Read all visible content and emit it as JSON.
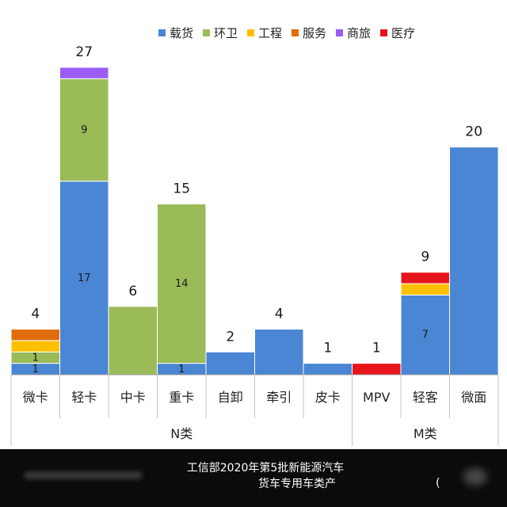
{
  "chart_data": {
    "type": "bar",
    "stacked": true,
    "categories": [
      "微卡",
      "轻卡",
      "中卡",
      "重卡",
      "自卸",
      "牵引",
      "皮卡",
      "MPV",
      "轻客",
      "微面"
    ],
    "groups": [
      {
        "label": "N类",
        "categories": [
          "微卡",
          "轻卡",
          "中卡",
          "重卡",
          "自卸",
          "牵引",
          "皮卡"
        ]
      },
      {
        "label": "M类",
        "categories": [
          "MPV",
          "轻客",
          "微面"
        ]
      }
    ],
    "series": [
      {
        "name": "载货",
        "color": "#4a86d4",
        "values": [
          1,
          17,
          0,
          1,
          2,
          4,
          1,
          0,
          7,
          20
        ]
      },
      {
        "name": "环卫",
        "color": "#9bbb59",
        "values": [
          1,
          9,
          6,
          14,
          0,
          0,
          0,
          0,
          0,
          0
        ]
      },
      {
        "name": "工程",
        "color": "#ffc000",
        "values": [
          1,
          0,
          0,
          0,
          0,
          0,
          0,
          0,
          1,
          0
        ]
      },
      {
        "name": "服务",
        "color": "#e36c0a",
        "values": [
          1,
          0,
          0,
          0,
          0,
          0,
          0,
          0,
          0,
          0
        ]
      },
      {
        "name": "商旅",
        "color": "#9b5cf6",
        "values": [
          0,
          1,
          0,
          0,
          0,
          0,
          0,
          0,
          0,
          0
        ]
      },
      {
        "name": "医疗",
        "color": "#e8141c",
        "values": [
          0,
          0,
          0,
          0,
          0,
          0,
          0,
          1,
          1,
          0
        ]
      }
    ],
    "totals": [
      4,
      27,
      6,
      15,
      2,
      4,
      1,
      1,
      9,
      20
    ],
    "segment_labels": [
      {
        "category": "微卡",
        "series": "载货",
        "text": "1"
      },
      {
        "category": "微卡",
        "series": "环卫",
        "text": "1"
      },
      {
        "category": "轻卡",
        "series": "载货",
        "text": "17"
      },
      {
        "category": "轻卡",
        "series": "环卫",
        "text": "9"
      },
      {
        "category": "重卡",
        "series": "载货",
        "text": "1"
      },
      {
        "category": "重卡",
        "series": "环卫",
        "text": "14"
      },
      {
        "category": "轻客",
        "series": "载货",
        "text": "7"
      }
    ],
    "ylim": [
      0,
      27
    ],
    "legend_position": "top-right",
    "grid": false
  },
  "caption": {
    "line1": "工信部2020年第5批新能源汽车",
    "line2": "货车专用车类产",
    "mark": "("
  }
}
